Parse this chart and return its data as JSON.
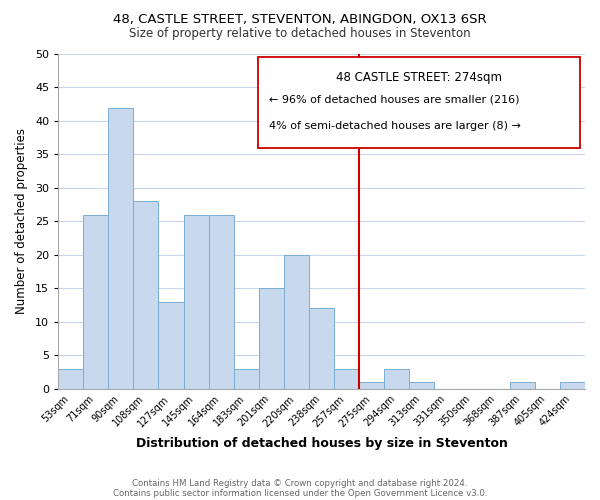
{
  "title1": "48, CASTLE STREET, STEVENTON, ABINGDON, OX13 6SR",
  "title2": "Size of property relative to detached houses in Steventon",
  "xlabel": "Distribution of detached houses by size in Steventon",
  "ylabel": "Number of detached properties",
  "bin_labels": [
    "53sqm",
    "71sqm",
    "90sqm",
    "108sqm",
    "127sqm",
    "145sqm",
    "164sqm",
    "183sqm",
    "201sqm",
    "220sqm",
    "238sqm",
    "257sqm",
    "275sqm",
    "294sqm",
    "313sqm",
    "331sqm",
    "350sqm",
    "368sqm",
    "387sqm",
    "405sqm",
    "424sqm"
  ],
  "bar_heights": [
    3,
    26,
    42,
    28,
    13,
    26,
    26,
    3,
    15,
    20,
    12,
    3,
    1,
    3,
    1,
    0,
    0,
    0,
    1,
    0,
    1
  ],
  "bar_color": "#c8d9ee",
  "bar_edge_color": "#7aaed4",
  "vline_color": "#cc0000",
  "ylim": [
    0,
    50
  ],
  "yticks": [
    0,
    5,
    10,
    15,
    20,
    25,
    30,
    35,
    40,
    45,
    50
  ],
  "annotation_title": "48 CASTLE STREET: 274sqm",
  "annotation_line1": "← 96% of detached houses are smaller (216)",
  "annotation_line2": "4% of semi-detached houses are larger (8) →",
  "footer1": "Contains HM Land Registry data © Crown copyright and database right 2024.",
  "footer2": "Contains public sector information licensed under the Open Government Licence v3.0.",
  "background_color": "#ffffff",
  "grid_color": "#c8d4e8"
}
